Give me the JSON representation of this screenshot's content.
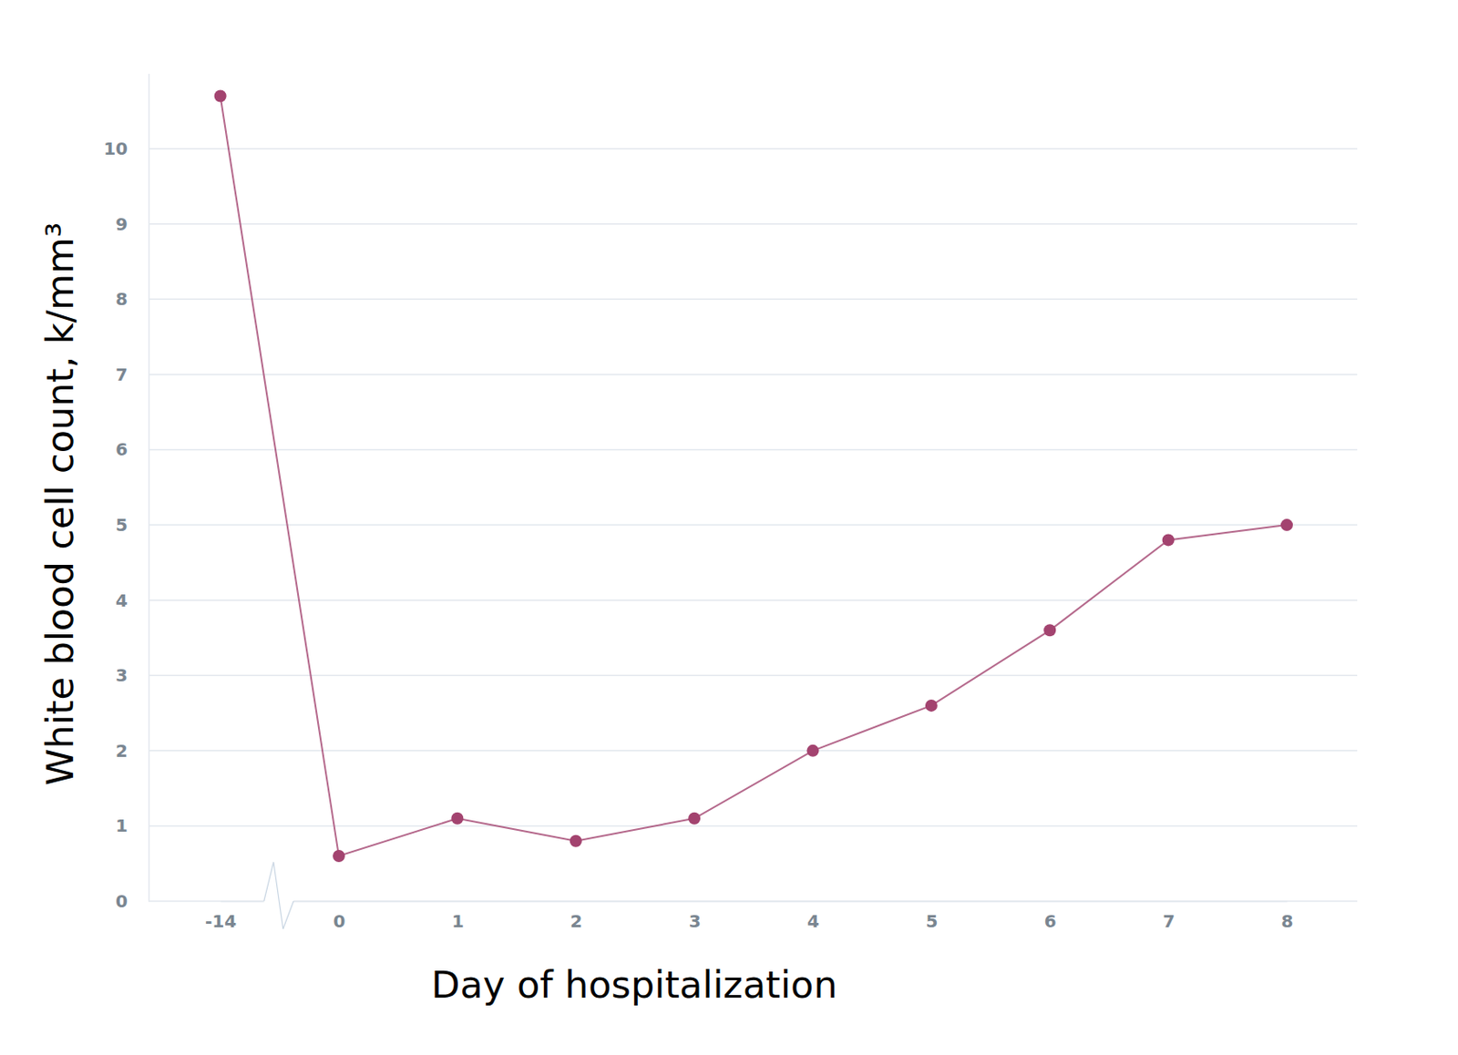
{
  "chart_data": {
    "type": "line",
    "x_label": "Day of hospitalization",
    "y_label": "White blood cell count, k/mm³",
    "categories": [
      "-14",
      "0",
      "1",
      "2",
      "3",
      "4",
      "5",
      "6",
      "7",
      "8"
    ],
    "values": [
      10.7,
      0.6,
      1.1,
      0.8,
      1.1,
      2.0,
      2.6,
      3.6,
      4.8,
      5.0
    ],
    "color": "#a3436f",
    "marker": "circle",
    "ylim": [
      0,
      11
    ],
    "yticks": [
      0,
      1,
      2,
      3,
      4,
      5,
      6,
      7,
      8,
      9,
      10
    ],
    "grid": true
  }
}
